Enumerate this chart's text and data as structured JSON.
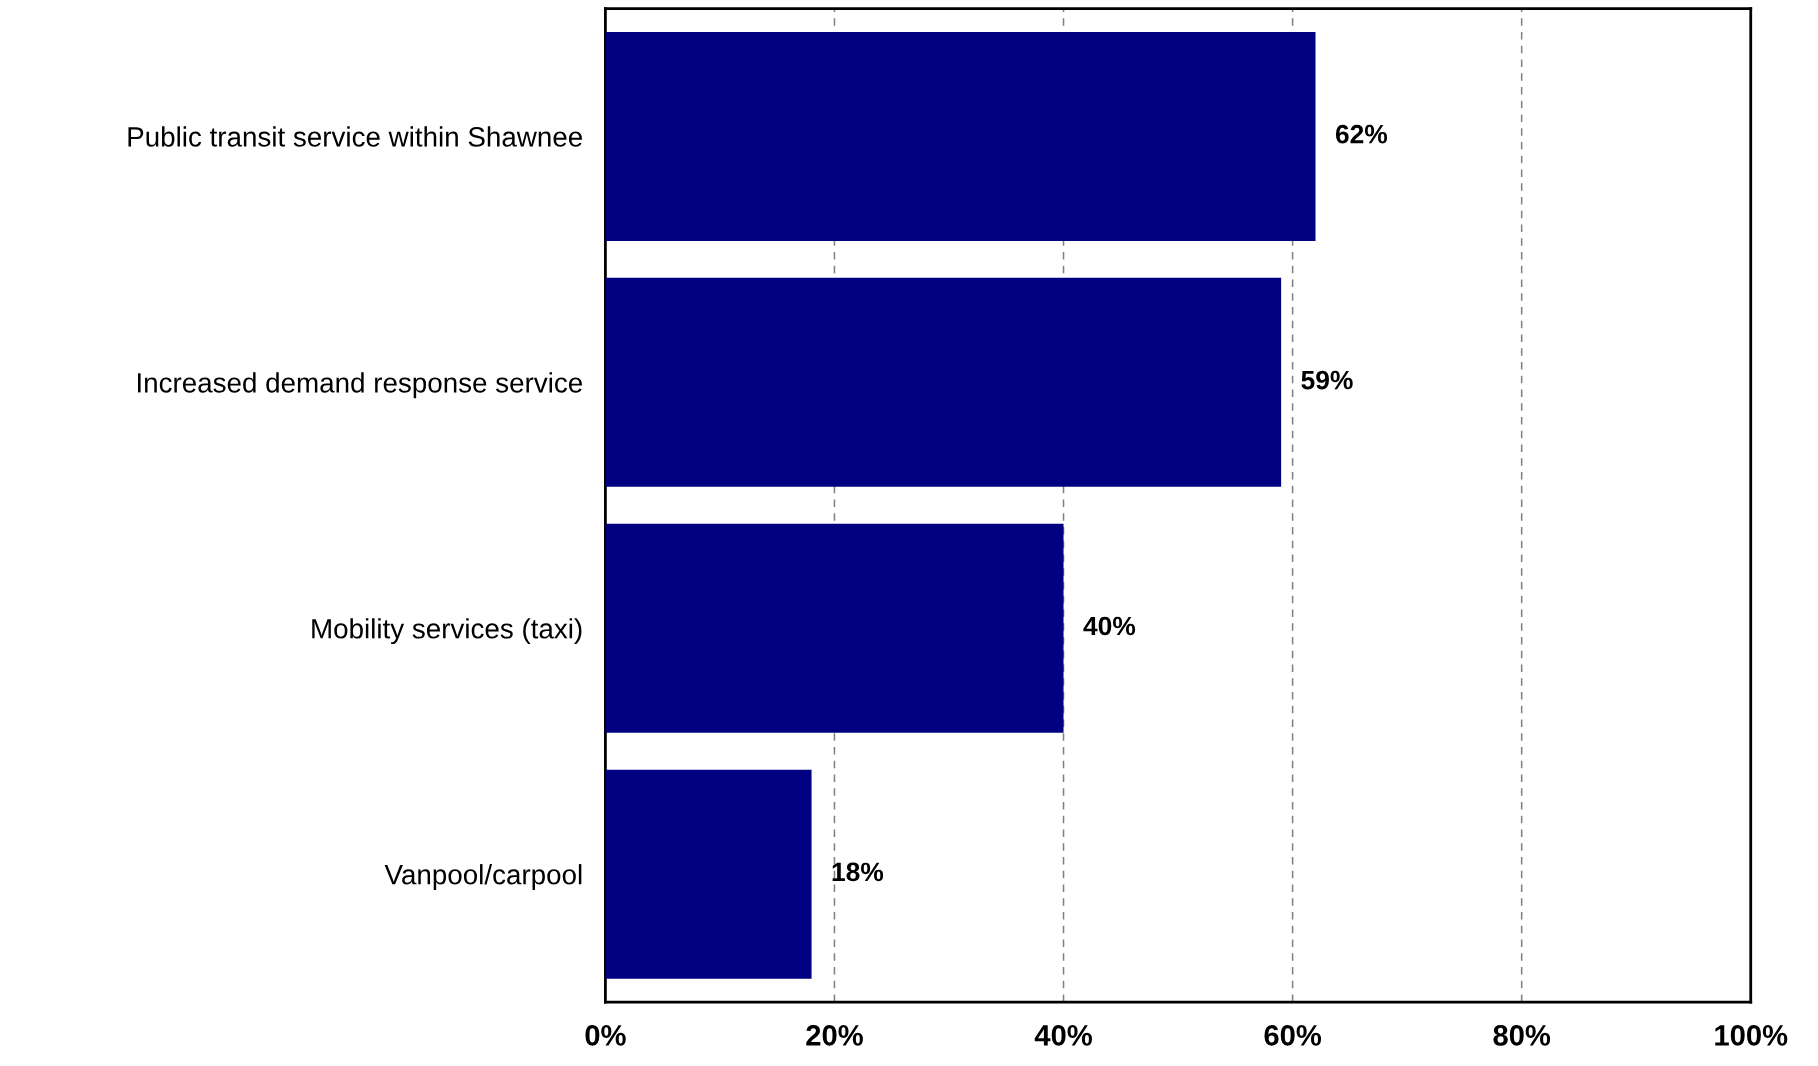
{
  "chart_data": {
    "type": "bar",
    "orientation": "horizontal",
    "categories": [
      "Public transit service within Shawnee",
      "Increased demand response service",
      "Mobility services (taxi)",
      "Vanpool/carpool"
    ],
    "values": [
      62,
      59,
      40,
      18
    ],
    "value_labels": [
      "62%",
      "59%",
      "40%",
      "18%"
    ],
    "color": "#000080",
    "xlim": [
      0,
      100
    ],
    "xticks": [
      {
        "value": 0,
        "label": "0%"
      },
      {
        "value": 20,
        "label": "20%"
      },
      {
        "value": 40,
        "label": "40%"
      },
      {
        "value": 60,
        "label": "60%"
      },
      {
        "value": 80,
        "label": "80%"
      },
      {
        "value": 100,
        "label": "100%"
      }
    ],
    "grid": "x"
  }
}
